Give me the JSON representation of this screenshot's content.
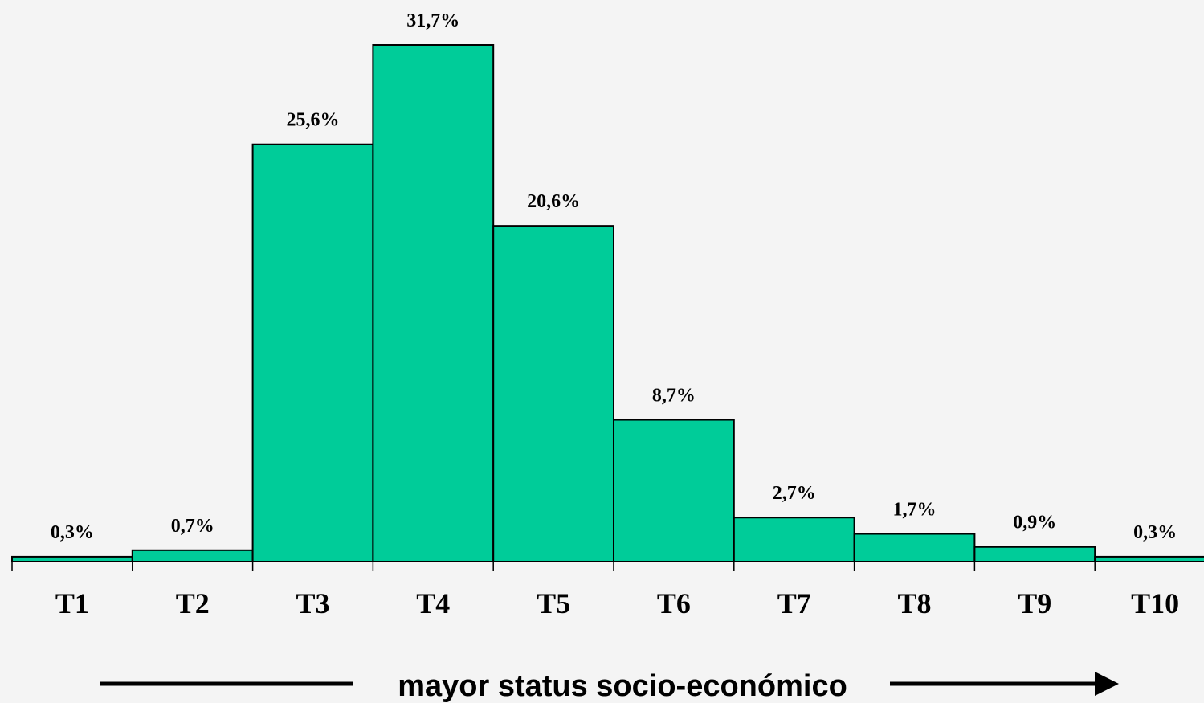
{
  "chart_data": {
    "type": "bar",
    "categories": [
      "T1",
      "T2",
      "T3",
      "T4",
      "T5",
      "T6",
      "T7",
      "T8",
      "T9",
      "T10"
    ],
    "values": [
      0.3,
      0.7,
      25.6,
      31.7,
      20.6,
      8.7,
      2.7,
      1.7,
      0.9,
      0.3
    ],
    "value_labels": [
      "0,3%",
      "0,7%",
      "25,6%",
      "31,7%",
      "20,6%",
      "8,7%",
      "2,7%",
      "1,7%",
      "0,9%",
      "0,3%"
    ],
    "title": "",
    "xlabel": "mayor status socio-económico",
    "ylabel": "",
    "ylim": [
      0,
      31.7
    ],
    "grid": false,
    "bar_color": "#00cc99",
    "xlabel_arrow": "right-arrow-icon"
  }
}
